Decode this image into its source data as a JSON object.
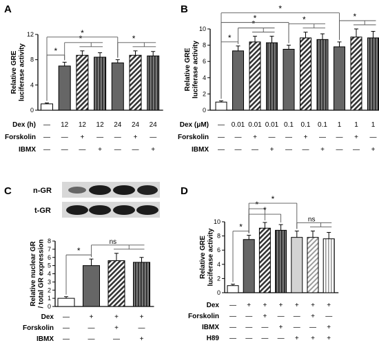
{
  "chart_data": [
    {
      "panel": "A",
      "type": "bar",
      "ylabel": "Relative GRE luciferase activity",
      "ylim": [
        0,
        12
      ],
      "yticks": [
        0,
        4,
        8,
        12
      ],
      "values": [
        1.0,
        7.0,
        8.7,
        8.4,
        7.5,
        8.7,
        8.6
      ],
      "errors": [
        0.15,
        0.6,
        0.7,
        0.7,
        0.5,
        0.7,
        0.7
      ],
      "fills": [
        "white",
        "gray",
        "hatch",
        "dark",
        "gray",
        "hatch",
        "dark"
      ],
      "rows": [
        {
          "label": "Dex (h)",
          "cells": [
            "—",
            "12",
            "12",
            "12",
            "24",
            "24",
            "24"
          ]
        },
        {
          "label": "Forskolin",
          "cells": [
            "—",
            "—",
            "+",
            "—",
            "—",
            "+",
            "—"
          ]
        },
        {
          "label": "IBMX",
          "cells": [
            "—",
            "—",
            "—",
            "+",
            "—",
            "—",
            "+"
          ]
        }
      ],
      "annotations": [
        {
          "text": "*",
          "from": 0,
          "to": 1,
          "level": 0
        },
        {
          "text": "*",
          "from": 1,
          "to": [
            2,
            3
          ],
          "level": 1
        },
        {
          "text": "*",
          "from": 0,
          "to": 4,
          "level": 2
        },
        {
          "text": "*",
          "from": 4,
          "to": [
            5,
            6
          ],
          "level": 1
        }
      ]
    },
    {
      "panel": "B",
      "type": "bar",
      "ylabel": "Relative GRE luciferase activity",
      "ylim": [
        0,
        10
      ],
      "yticks": [
        0,
        2,
        4,
        6,
        8,
        10
      ],
      "values": [
        1.0,
        7.3,
        8.4,
        8.3,
        7.5,
        8.9,
        8.7,
        7.8,
        9.0,
        8.9
      ],
      "errors": [
        0.15,
        0.6,
        0.7,
        0.8,
        0.5,
        0.7,
        0.7,
        0.6,
        1.0,
        0.8
      ],
      "fills": [
        "white",
        "gray",
        "hatch",
        "dark",
        "gray",
        "hatch",
        "dark",
        "gray",
        "hatch",
        "dark"
      ],
      "rows": [
        {
          "label": "Dex (μM)",
          "cells": [
            "—",
            "0.01",
            "0.01",
            "0.01",
            "0.1",
            "0.1",
            "0.1",
            "1",
            "1",
            "1"
          ]
        },
        {
          "label": "Forskolin",
          "cells": [
            "—",
            "—",
            "+",
            "—",
            "—",
            "+",
            "—",
            "—",
            "+",
            "—"
          ]
        },
        {
          "label": "IBMX",
          "cells": [
            "—",
            "—",
            "—",
            "+",
            "—",
            "—",
            "+",
            "—",
            "—",
            "+"
          ]
        }
      ],
      "annotations": [
        {
          "text": "*",
          "from": 0,
          "to": 1,
          "level": 0
        },
        {
          "text": "*",
          "from": 1,
          "to": [
            2,
            3
          ],
          "level": 1
        },
        {
          "text": "*",
          "from": 0,
          "to": 4,
          "level": 2
        },
        {
          "text": "*",
          "from": 4,
          "to": [
            5,
            6
          ],
          "level": 1
        },
        {
          "text": "*",
          "from": 0,
          "to": 7,
          "level": 3
        },
        {
          "text": "*",
          "from": 7,
          "to": [
            8,
            9
          ],
          "level": 1
        }
      ]
    },
    {
      "panel": "C",
      "type": "bar",
      "ylabel": "Relative nuclear GR / total GR expression",
      "ylim": [
        0,
        8
      ],
      "yticks": [
        0,
        1,
        2,
        3,
        4,
        5,
        6,
        7,
        8
      ],
      "values": [
        1.0,
        5.0,
        5.6,
        5.4
      ],
      "errors": [
        0.2,
        0.8,
        0.9,
        0.6
      ],
      "fills": [
        "white",
        "gray",
        "hatch",
        "dark"
      ],
      "rows": [
        {
          "label": "Dex",
          "cells": [
            "—",
            "+",
            "+",
            "+"
          ]
        },
        {
          "label": "Forskolin",
          "cells": [
            "—",
            "—",
            "+",
            "—"
          ]
        },
        {
          "label": "IBMX",
          "cells": [
            "—",
            "—",
            "—",
            "+"
          ]
        }
      ],
      "annotations": [
        {
          "text": "*",
          "from": 0,
          "to": 1,
          "level": 0
        },
        {
          "text": "ns",
          "from": 1,
          "to": [
            2,
            3
          ],
          "level": 1
        }
      ],
      "blot_labels": [
        "n-GR",
        "t-GR"
      ]
    },
    {
      "panel": "D",
      "type": "bar",
      "ylabel": "Relative GRE luciferase activity",
      "ylim": [
        0,
        10
      ],
      "yticks": [
        0,
        2,
        4,
        6,
        8,
        10
      ],
      "values": [
        1.0,
        7.5,
        9.1,
        8.8,
        7.8,
        7.8,
        7.6
      ],
      "errors": [
        0.2,
        0.6,
        0.8,
        0.8,
        0.9,
        0.9,
        0.9
      ],
      "fills": [
        "white",
        "gray",
        "hatch",
        "dark",
        "lightgray",
        "lighthatch",
        "lightstripe"
      ],
      "rows": [
        {
          "label": "Dex",
          "cells": [
            "—",
            "+",
            "+",
            "+",
            "+",
            "+",
            "+"
          ]
        },
        {
          "label": "Forskolin",
          "cells": [
            "—",
            "—",
            "+",
            "—",
            "—",
            "+",
            "—"
          ]
        },
        {
          "label": "IBMX",
          "cells": [
            "—",
            "—",
            "—",
            "+",
            "—",
            "—",
            "+"
          ]
        },
        {
          "label": "H89",
          "cells": [
            "—",
            "—",
            "—",
            "—",
            "+",
            "+",
            "+"
          ]
        }
      ],
      "annotations": [
        {
          "text": "*",
          "from": 0,
          "to": 1,
          "level": 0
        },
        {
          "text": "*",
          "from": 1,
          "to": 3,
          "level": 1
        },
        {
          "text": "*",
          "from": 1,
          "to": 2,
          "level": 2
        },
        {
          "text": "*",
          "from": 1,
          "to": 4,
          "level": 3
        },
        {
          "text": "ns",
          "from": 4,
          "to": [
            5,
            6
          ],
          "level": 1
        }
      ]
    }
  ]
}
